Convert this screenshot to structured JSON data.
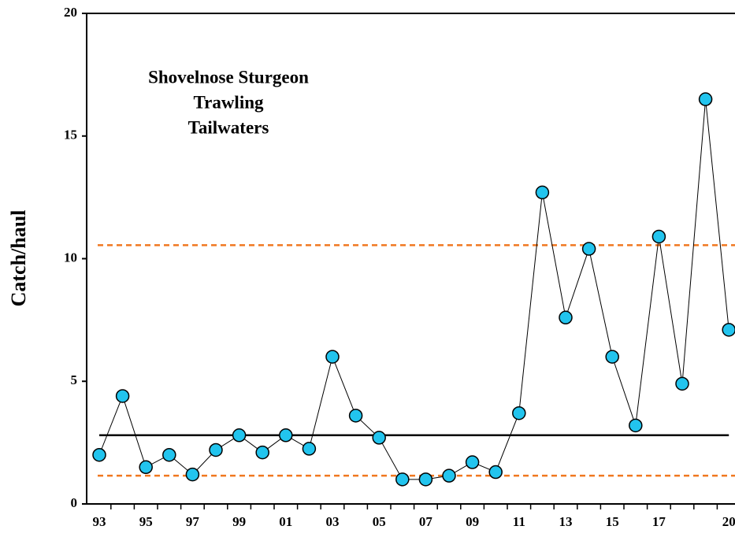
{
  "chart_data": {
    "type": "line",
    "title": [
      "Shovelnose Sturgeon",
      "Trawling",
      "Tailwaters"
    ],
    "y_label": "Catch/haul",
    "categories": [
      "93",
      null,
      "95",
      null,
      "97",
      null,
      "99",
      null,
      "01",
      null,
      "03",
      null,
      "05",
      null,
      "07",
      null,
      "09",
      null,
      "11",
      null,
      "13",
      null,
      "15",
      null,
      "17",
      null,
      null,
      "20"
    ],
    "series": [
      {
        "color": "#22c4ee",
        "line_color": "#000000",
        "values": [
          2.0,
          4.4,
          1.5,
          2.0,
          1.2,
          2.2,
          2.8,
          2.1,
          2.8,
          2.25,
          6.0,
          3.6,
          2.7,
          1.0,
          1.0,
          1.15,
          1.7,
          1.3,
          3.7,
          12.7,
          7.6,
          10.4,
          6.0,
          3.2,
          10.9,
          4.9,
          16.5,
          7.1
        ]
      }
    ],
    "reference_lines": [
      {
        "value": 2.8,
        "color": "#000000",
        "style": "solid"
      },
      {
        "value": 10.55,
        "color": "#f07820",
        "style": "dashed"
      },
      {
        "value": 1.15,
        "color": "#f07820",
        "style": "dashed"
      }
    ],
    "ylim": [
      0,
      20
    ],
    "yticks": [
      0,
      5,
      10,
      15,
      20
    ]
  }
}
